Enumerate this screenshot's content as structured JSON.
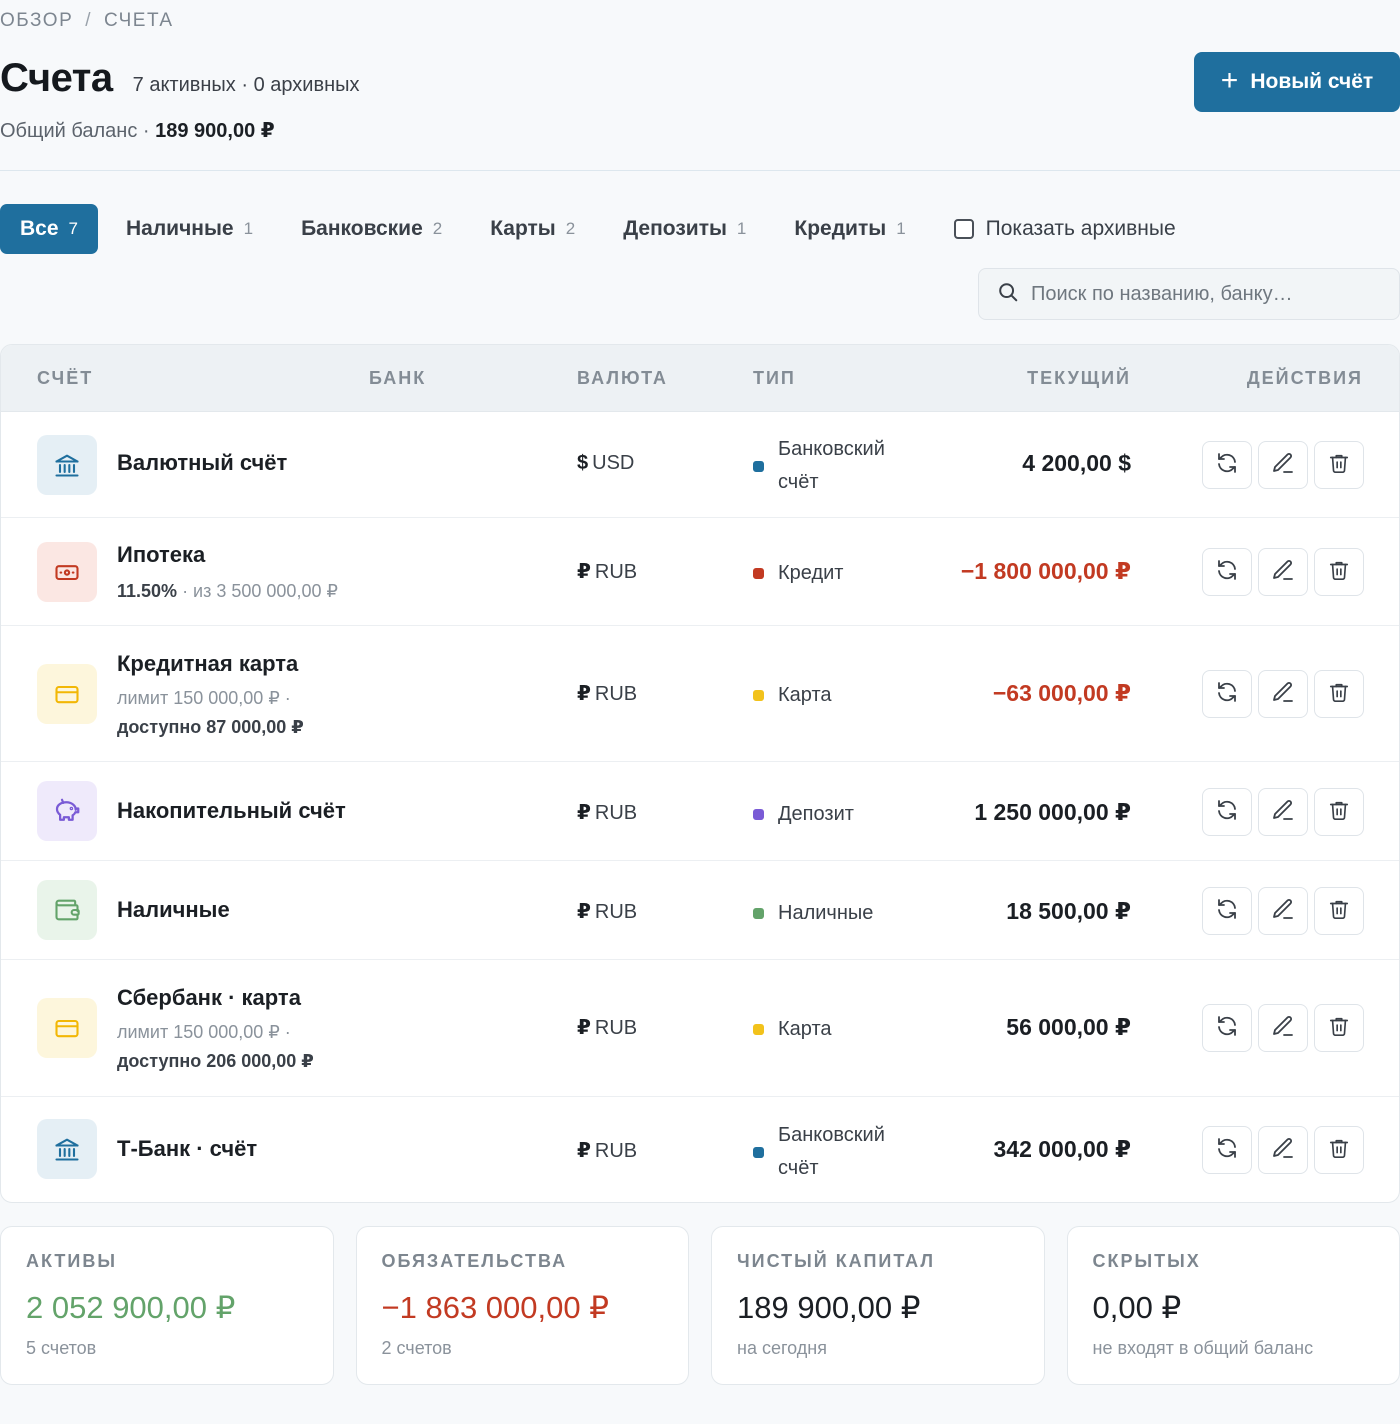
{
  "breadcrumb": {
    "root": "ОБЗОР",
    "sep": "/",
    "current": "СЧЕТА"
  },
  "header": {
    "title": "Счета",
    "subtitle": "7 активных · 0 архивных",
    "balance_label": "Общий баланс ·",
    "balance_value": "189 900,00 ₽",
    "new_button": "Новый счёт",
    "new_button_icon": "+"
  },
  "tabs": [
    {
      "label": "Все",
      "count": "7",
      "active": true
    },
    {
      "label": "Наличные",
      "count": "1"
    },
    {
      "label": "Банковские",
      "count": "2"
    },
    {
      "label": "Карты",
      "count": "2"
    },
    {
      "label": "Депозиты",
      "count": "1"
    },
    {
      "label": "Кредиты",
      "count": "1"
    }
  ],
  "archive_toggle": {
    "label": "Показать архивные",
    "checked": false
  },
  "search": {
    "placeholder": "Поиск по названию, банку…",
    "value": ""
  },
  "table": {
    "columns": {
      "account": "СЧЁТ",
      "bank": "БАНК",
      "currency": "ВАЛЮТА",
      "type": "ТИП",
      "current": "ТЕКУЩИЙ",
      "actions": "ДЕЙСТВИЯ"
    },
    "rows": [
      {
        "icon": "bank-icon",
        "name": "Валютный счёт",
        "meta1": "",
        "meta2": "",
        "meta2_bold": "",
        "currency_symbol": "$",
        "currency_code": "USD",
        "type": "Банковский счёт",
        "type_color": "#1f6f9e",
        "amount": "4 200,00 $",
        "negative": false
      },
      {
        "icon": "credit-icon",
        "name": "Ипотека",
        "meta_rate": "11.50%",
        "meta1": " · из 3 500 000,00 ₽",
        "meta2": "",
        "meta2_bold": "",
        "currency_symbol": "₽",
        "currency_code": "RUB",
        "type": "Кредит",
        "type_color": "#c23a22",
        "amount": "−1 800 000,00 ₽",
        "negative": true
      },
      {
        "icon": "card-icon",
        "name": "Кредитная карта",
        "meta1": "лимит 150 000,00 ₽ ·",
        "meta2_bold": "доступно 87 000,00 ₽",
        "currency_symbol": "₽",
        "currency_code": "RUB",
        "type": "Карта",
        "type_color": "#f2c21b",
        "amount": "−63 000,00 ₽",
        "negative": true
      },
      {
        "icon": "piggy-bank-icon",
        "name": "Накопительный счёт",
        "meta1": "",
        "currency_symbol": "₽",
        "currency_code": "RUB",
        "type": "Депозит",
        "type_color": "#7a5bd6",
        "amount": "1 250 000,00 ₽",
        "negative": false
      },
      {
        "icon": "wallet-icon",
        "name": "Наличные",
        "meta1": "",
        "currency_symbol": "₽",
        "currency_code": "RUB",
        "type": "Наличные",
        "type_color": "#63a36a",
        "amount": "18 500,00 ₽",
        "negative": false
      },
      {
        "icon": "card-icon",
        "name": "Сбербанк · карта",
        "meta1": "лимит 150 000,00 ₽ ·",
        "meta2_bold": "доступно 206 000,00 ₽",
        "currency_symbol": "₽",
        "currency_code": "RUB",
        "type": "Карта",
        "type_color": "#f2c21b",
        "amount": "56 000,00 ₽",
        "negative": false
      },
      {
        "icon": "bank-icon",
        "name": "Т-Банк · счёт",
        "meta1": "",
        "currency_symbol": "₽",
        "currency_code": "RUB",
        "type": "Банковский счёт",
        "type_color": "#1f6f9e",
        "amount": "342 000,00 ₽",
        "negative": false
      }
    ],
    "row_actions": [
      "refresh-icon",
      "edit-icon",
      "delete-icon"
    ]
  },
  "summary": [
    {
      "label": "АКТИВЫ",
      "value": "2 052 900,00 ₽",
      "sub": "5 счетов",
      "tone": "pos"
    },
    {
      "label": "ОБЯЗАТЕЛЬСТВА",
      "value": "−1 863 000,00 ₽",
      "sub": "2 счетов",
      "tone": "neg"
    },
    {
      "label": "ЧИСТЫЙ КАПИТАЛ",
      "value": "189 900,00 ₽",
      "sub": "на сегодня",
      "tone": ""
    },
    {
      "label": "СКРЫТЫХ",
      "value": "0,00 ₽",
      "sub": "не входят в общий баланс",
      "tone": ""
    }
  ],
  "colors": {
    "accent": "#1f6f9e",
    "negative": "#c23a22",
    "positive": "#63a36a"
  }
}
